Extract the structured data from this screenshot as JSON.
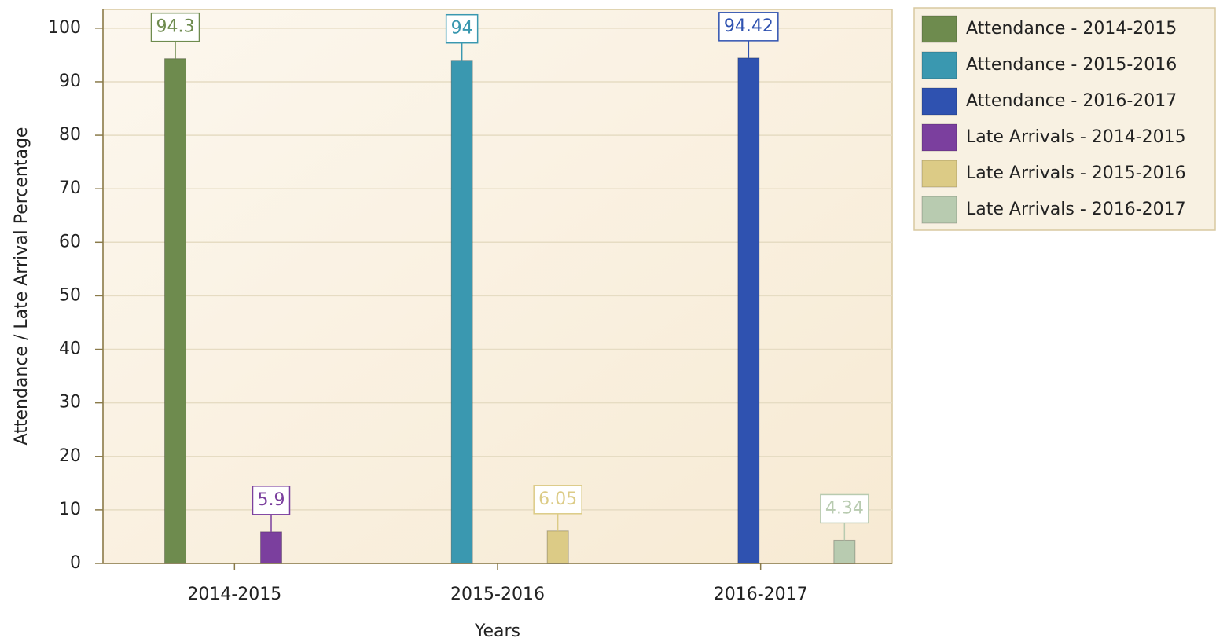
{
  "chart_data": {
    "type": "bar",
    "categories": [
      "2014-2015",
      "2015-2016",
      "2016-2017"
    ],
    "series": [
      {
        "name": "Attendance - 2014-2015",
        "color": "#6e8b4e",
        "values": [
          94.3,
          null,
          null
        ]
      },
      {
        "name": "Attendance - 2015-2016",
        "color": "#3a98b0",
        "values": [
          null,
          94,
          null
        ]
      },
      {
        "name": "Attendance - 2016-2017",
        "color": "#2f52b0",
        "values": [
          null,
          null,
          94.42
        ]
      },
      {
        "name": "Late Arrivals - 2014-2015",
        "color": "#7b3f9e",
        "values": [
          5.9,
          null,
          null
        ]
      },
      {
        "name": "Late Arrivals - 2015-2016",
        "color": "#dccb86",
        "values": [
          null,
          6.05,
          null
        ]
      },
      {
        "name": "Late Arrivals - 2016-2017",
        "color": "#b8cbb0",
        "values": [
          null,
          null,
          4.34
        ]
      }
    ],
    "x_label": "Years",
    "y_label": "Attendance / Late Arrival Percentage",
    "ylim": [
      0,
      103.5
    ],
    "yticks": [
      0,
      10,
      20,
      30,
      40,
      50,
      60,
      70,
      80,
      90,
      100
    ],
    "grid": true,
    "legend": "right"
  }
}
